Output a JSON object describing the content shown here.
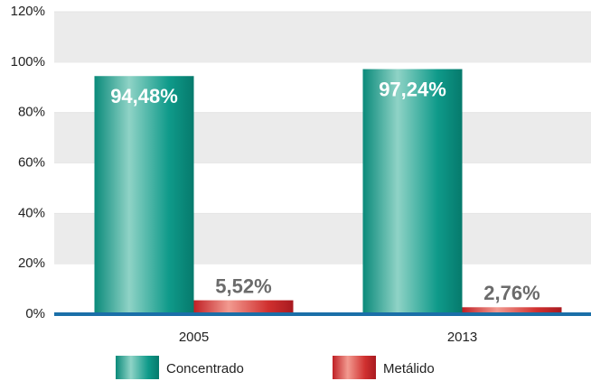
{
  "chart_data": {
    "type": "bar",
    "categories": [
      "2005",
      "2013"
    ],
    "series": [
      {
        "name": "Concentrado",
        "color": "#0f9a8a",
        "values": [
          94.48,
          97.24
        ],
        "value_labels": [
          "94,48%",
          "97,24%"
        ]
      },
      {
        "name": "Metálido",
        "color": "#d0302f",
        "values": [
          5.52,
          2.76
        ],
        "value_labels": [
          "5,52%",
          "2,76%"
        ]
      }
    ],
    "ylim": [
      0,
      120
    ],
    "yticks": [
      {
        "value": 0,
        "label": "0%"
      },
      {
        "value": 20,
        "label": "20%"
      },
      {
        "value": 40,
        "label": "40%"
      },
      {
        "value": 60,
        "label": "60%"
      },
      {
        "value": 80,
        "label": "80%"
      },
      {
        "value": 100,
        "label": "100%"
      },
      {
        "value": 120,
        "label": "120%"
      }
    ],
    "grid": true
  }
}
